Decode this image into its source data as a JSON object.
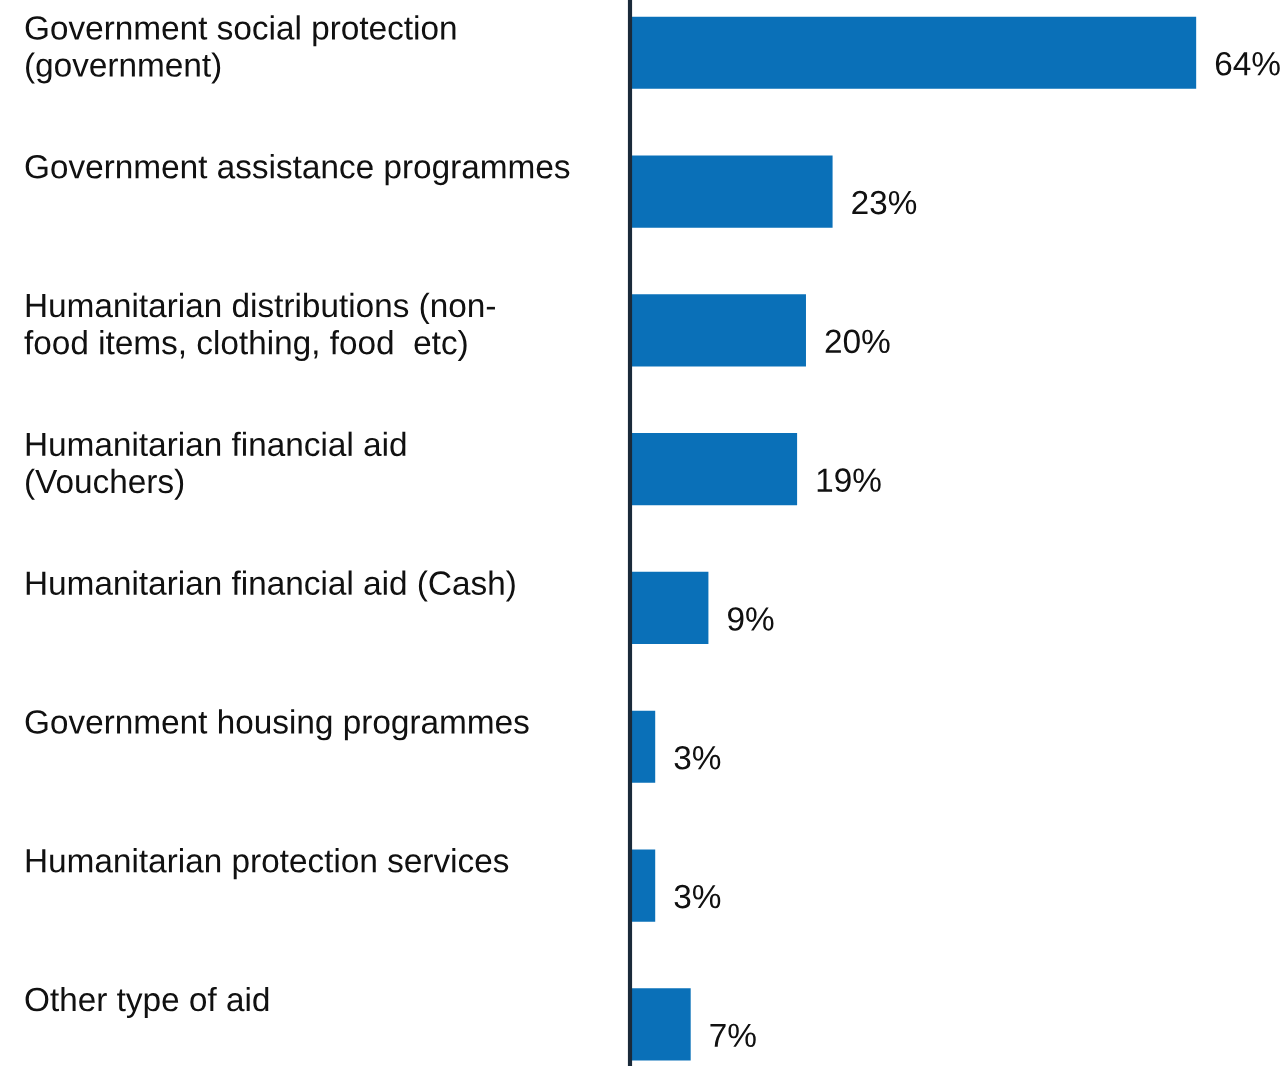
{
  "chart_data": {
    "type": "bar",
    "orientation": "horizontal",
    "categories": [
      "Government social protection\n(government)",
      "Government assistance programmes",
      "Humanitarian distributions (non-\nfood items, clothing, food  etc)",
      "Humanitarian financial aid\n(Vouchers)",
      "Humanitarian financial aid (Cash)",
      "Government housing programmes",
      "Humanitarian protection services",
      "Other type of aid"
    ],
    "values": [
      64,
      23,
      20,
      19,
      9,
      3,
      3,
      7
    ],
    "value_labels": [
      "64%",
      "23%",
      "20%",
      "19%",
      "9%",
      "3%",
      "3%",
      "7%"
    ],
    "color": "#0a70b8",
    "legend": false
  }
}
